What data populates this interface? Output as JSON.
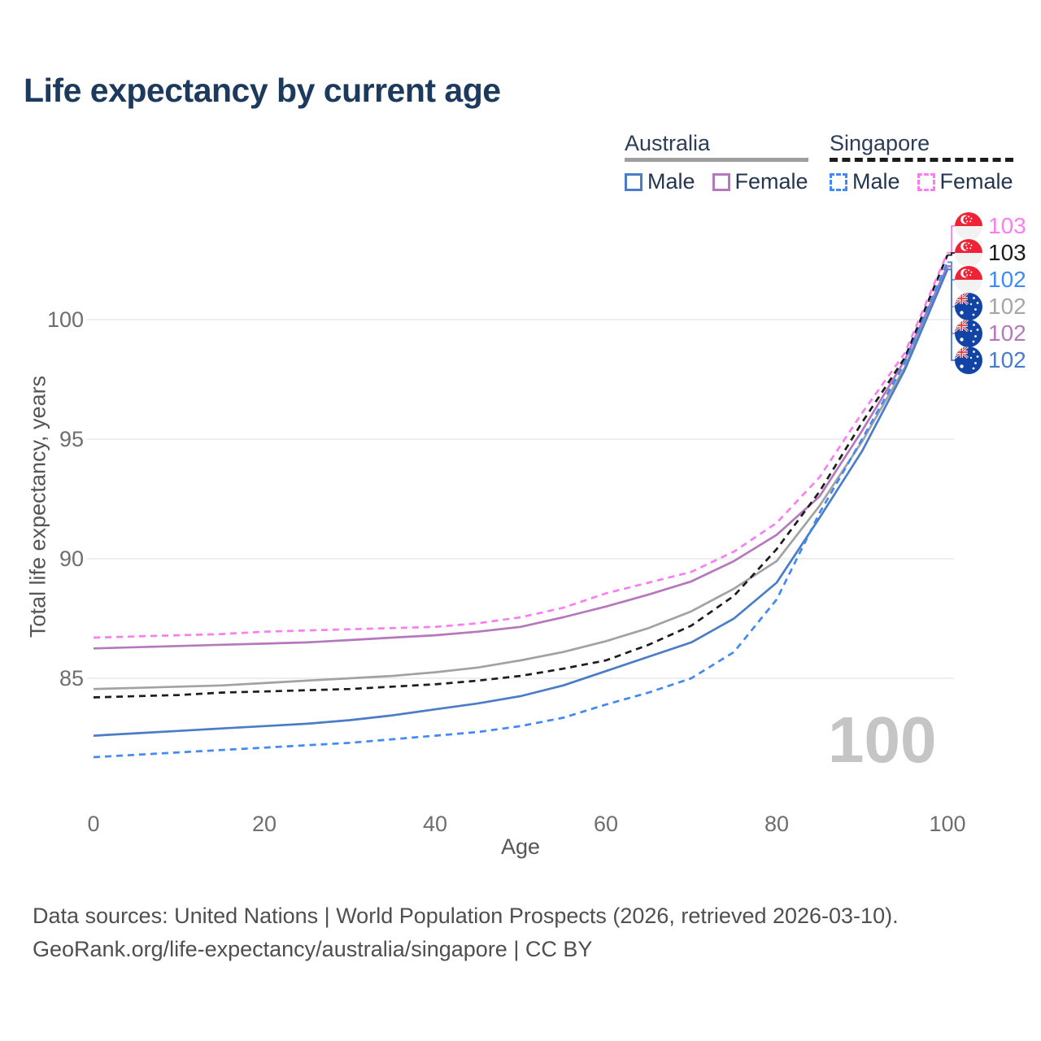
{
  "header": {
    "title": "Life expectancy by current age"
  },
  "legend": {
    "groups": [
      {
        "label": "Australia",
        "line_style": "solid",
        "underline_color": "#9e9e9e",
        "items": [
          {
            "label": "Male",
            "color": "#4a7cc7"
          },
          {
            "label": "Female",
            "color": "#b678bc"
          }
        ]
      },
      {
        "label": "Singapore",
        "line_style": "dashed",
        "underline_color": "#1c1c1c",
        "items": [
          {
            "label": "Male",
            "color": "#4189f5"
          },
          {
            "label": "Female",
            "color": "#fa7ef2"
          }
        ]
      }
    ]
  },
  "axes": {
    "x_title": "Age",
    "y_title": "Total life expectancy, years"
  },
  "watermark": {
    "text": "100"
  },
  "end_labels": [
    {
      "flag": "singapore",
      "value": "103",
      "color": "#fa7ef2",
      "series": "Singapore Female"
    },
    {
      "flag": "singapore",
      "value": "103",
      "color": "#1c1c1c",
      "series": "Singapore"
    },
    {
      "flag": "singapore",
      "value": "102",
      "color": "#4189f5",
      "series": "Singapore Male"
    },
    {
      "flag": "australia",
      "value": "102",
      "color": "#a6a6a6",
      "series": "Australia"
    },
    {
      "flag": "australia",
      "value": "102",
      "color": "#b678bc",
      "series": "Australia Female"
    },
    {
      "flag": "australia",
      "value": "102",
      "color": "#4a7cc7",
      "series": "Australia Male"
    }
  ],
  "chart_data": {
    "type": "line",
    "title": "Life expectancy by current age",
    "xlabel": "Age",
    "ylabel": "Total life expectancy, years",
    "x_ticks": [
      0,
      20,
      40,
      60,
      80,
      100
    ],
    "y_ticks": [
      85,
      90,
      95,
      100
    ],
    "xlim": [
      0,
      100
    ],
    "ylim": [
      80.5,
      103.5
    ],
    "grid": "horizontal",
    "legend_position": "top-right",
    "ages": [
      0,
      5,
      10,
      15,
      20,
      25,
      30,
      35,
      40,
      45,
      50,
      55,
      60,
      65,
      70,
      75,
      80,
      85,
      90,
      95,
      100
    ],
    "series": [
      {
        "name": "Australia",
        "country": "Australia",
        "group": "both",
        "style": "solid",
        "color": "#a2a2a2",
        "values": [
          84.55,
          84.6,
          84.65,
          84.7,
          84.8,
          84.9,
          85.0,
          85.1,
          85.25,
          85.45,
          85.75,
          86.1,
          86.55,
          87.1,
          87.8,
          88.75,
          89.9,
          92.2,
          94.9,
          98.0,
          102.2
        ]
      },
      {
        "name": "Australia Female",
        "country": "Australia",
        "group": "female",
        "style": "solid",
        "color": "#b678bc",
        "values": [
          86.25,
          86.3,
          86.35,
          86.4,
          86.45,
          86.5,
          86.6,
          86.7,
          86.8,
          86.95,
          87.15,
          87.55,
          88.0,
          88.5,
          89.05,
          89.9,
          91.0,
          92.6,
          95.35,
          98.3,
          102.25
        ]
      },
      {
        "name": "Australia Male",
        "country": "Australia",
        "group": "male",
        "style": "solid",
        "color": "#4a7cc7",
        "values": [
          82.6,
          82.7,
          82.8,
          82.9,
          83.0,
          83.1,
          83.25,
          83.45,
          83.7,
          83.95,
          84.25,
          84.7,
          85.3,
          85.9,
          86.5,
          87.5,
          89.0,
          91.7,
          94.5,
          97.9,
          102.1
        ]
      },
      {
        "name": "Singapore",
        "country": "Singapore",
        "group": "both",
        "style": "dashed",
        "color": "#1c1c1c",
        "values": [
          84.2,
          84.25,
          84.3,
          84.4,
          84.45,
          84.5,
          84.55,
          84.65,
          84.75,
          84.9,
          85.1,
          85.4,
          85.75,
          86.4,
          87.2,
          88.45,
          90.4,
          92.8,
          95.7,
          98.4,
          102.7
        ]
      },
      {
        "name": "Singapore Male",
        "country": "Singapore",
        "group": "male",
        "style": "dashed",
        "color": "#4189f5",
        "values": [
          81.7,
          81.8,
          81.9,
          82.0,
          82.1,
          82.2,
          82.3,
          82.45,
          82.6,
          82.75,
          83.0,
          83.35,
          83.9,
          84.4,
          85.0,
          86.1,
          88.3,
          91.9,
          95.0,
          98.2,
          102.4
        ]
      },
      {
        "name": "Singapore Female",
        "country": "Singapore",
        "group": "female",
        "style": "dashed",
        "color": "#fa7ef2",
        "values": [
          86.7,
          86.75,
          86.8,
          86.85,
          86.95,
          87.0,
          87.05,
          87.1,
          87.15,
          87.3,
          87.55,
          87.95,
          88.55,
          89.0,
          89.45,
          90.3,
          91.5,
          93.4,
          96.1,
          98.6,
          102.8
        ]
      }
    ]
  },
  "footer": {
    "line1": "Data sources: United Nations | World Population Prospects (2026, retrieved 2026-03-10).",
    "line2": "GeoRank.org/life-expectancy/australia/singapore | CC BY"
  }
}
